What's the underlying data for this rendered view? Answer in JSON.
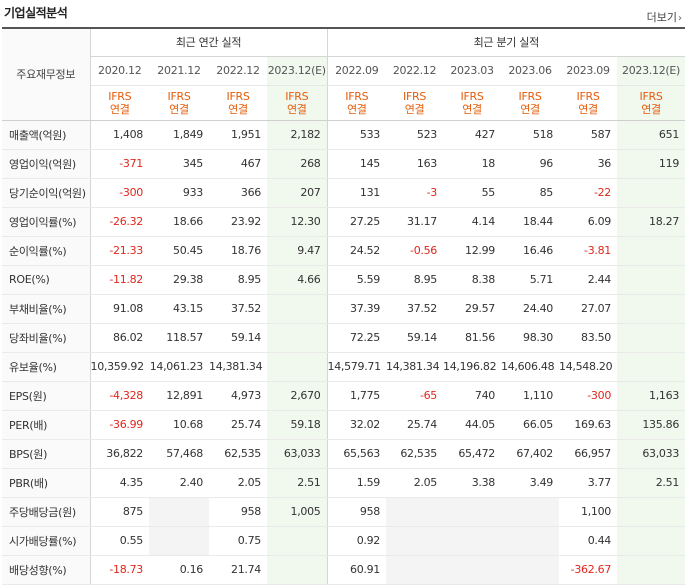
{
  "title": "기업실적분석",
  "more_label": "더보기",
  "row_header": "주요재무정보",
  "annual_label": "최근 연간 실적",
  "quarter_label": "최근 분기 실적",
  "colors": {
    "negative": "#e2261c",
    "ifrs": "#e55c0a",
    "estimate_bg": "#f1f8ee"
  },
  "columns": [
    {
      "date": "2020.12",
      "std1": "IFRS",
      "std2": "연결",
      "estimate": false
    },
    {
      "date": "2021.12",
      "std1": "IFRS",
      "std2": "연결",
      "estimate": false
    },
    {
      "date": "2022.12",
      "std1": "IFRS",
      "std2": "연결",
      "estimate": false
    },
    {
      "date": "2023.12(E)",
      "std1": "IFRS",
      "std2": "연결",
      "estimate": true
    },
    {
      "date": "2022.09",
      "std1": "IFRS",
      "std2": "연결",
      "estimate": false
    },
    {
      "date": "2022.12",
      "std1": "IFRS",
      "std2": "연결",
      "estimate": false
    },
    {
      "date": "2023.03",
      "std1": "IFRS",
      "std2": "연결",
      "estimate": false
    },
    {
      "date": "2023.06",
      "std1": "IFRS",
      "std2": "연결",
      "estimate": false
    },
    {
      "date": "2023.09",
      "std1": "IFRS",
      "std2": "연결",
      "estimate": false
    },
    {
      "date": "2023.12(E)",
      "std1": "IFRS",
      "std2": "연결",
      "estimate": true
    }
  ],
  "rows": [
    {
      "label": "매출액(억원)",
      "values": [
        "1,408",
        "1,849",
        "1,951",
        "2,182",
        "533",
        "523",
        "427",
        "518",
        "587",
        "651"
      ]
    },
    {
      "label": "영업이익(억원)",
      "values": [
        "-371",
        "345",
        "467",
        "268",
        "145",
        "163",
        "18",
        "96",
        "36",
        "119"
      ]
    },
    {
      "label": "당기순이익(억원)",
      "values": [
        "-300",
        "933",
        "366",
        "207",
        "131",
        "-3",
        "55",
        "85",
        "-22",
        ""
      ]
    },
    {
      "label": "영업이익률(%)",
      "section_start": true,
      "values": [
        "-26.32",
        "18.66",
        "23.92",
        "12.30",
        "27.25",
        "31.17",
        "4.14",
        "18.44",
        "6.09",
        "18.27"
      ]
    },
    {
      "label": "순이익률(%)",
      "values": [
        "-21.33",
        "50.45",
        "18.76",
        "9.47",
        "24.52",
        "-0.56",
        "12.99",
        "16.46",
        "-3.81",
        ""
      ]
    },
    {
      "label": "ROE(%)",
      "values": [
        "-11.82",
        "29.38",
        "8.95",
        "4.66",
        "5.59",
        "8.95",
        "8.38",
        "5.71",
        "2.44",
        ""
      ]
    },
    {
      "label": "부채비율(%)",
      "section_start": true,
      "values": [
        "91.08",
        "43.15",
        "37.52",
        "",
        "37.39",
        "37.52",
        "29.57",
        "24.40",
        "27.07",
        ""
      ]
    },
    {
      "label": "당좌비율(%)",
      "values": [
        "86.02",
        "118.57",
        "59.14",
        "",
        "72.25",
        "59.14",
        "81.56",
        "98.30",
        "83.50",
        ""
      ]
    },
    {
      "label": "유보율(%)",
      "values": [
        "10,359.92",
        "14,061.23",
        "14,381.34",
        "",
        "14,579.71",
        "14,381.34",
        "14,196.82",
        "14,606.48",
        "14,548.20",
        ""
      ]
    },
    {
      "label": "EPS(원)",
      "section_start": true,
      "values": [
        "-4,328",
        "12,891",
        "4,973",
        "2,670",
        "1,775",
        "-65",
        "740",
        "1,110",
        "-300",
        "1,163"
      ]
    },
    {
      "label": "PER(배)",
      "values": [
        "-36.99",
        "10.68",
        "25.74",
        "59.18",
        "32.02",
        "25.74",
        "44.05",
        "66.05",
        "169.63",
        "135.86"
      ]
    },
    {
      "label": "BPS(원)",
      "values": [
        "36,822",
        "57,468",
        "62,535",
        "63,033",
        "65,563",
        "62,535",
        "65,472",
        "67,402",
        "66,957",
        "63,033"
      ]
    },
    {
      "label": "PBR(배)",
      "values": [
        "4.35",
        "2.40",
        "2.05",
        "2.51",
        "1.59",
        "2.05",
        "3.38",
        "3.49",
        "3.77",
        "2.51"
      ]
    },
    {
      "label": "주당배당금(원)",
      "section_start": true,
      "values": [
        "875",
        "",
        "958",
        "1,005",
        "958",
        "",
        "",
        "",
        "1,100",
        ""
      ]
    },
    {
      "label": "시가배당률(%)",
      "values": [
        "0.55",
        "",
        "0.75",
        "",
        "0.92",
        "",
        "",
        "",
        "0.44",
        ""
      ]
    },
    {
      "label": "배당성향(%)",
      "values": [
        "-18.73",
        "0.16",
        "21.74",
        "",
        "60.91",
        "",
        "",
        "",
        "-362.67",
        ""
      ]
    }
  ]
}
